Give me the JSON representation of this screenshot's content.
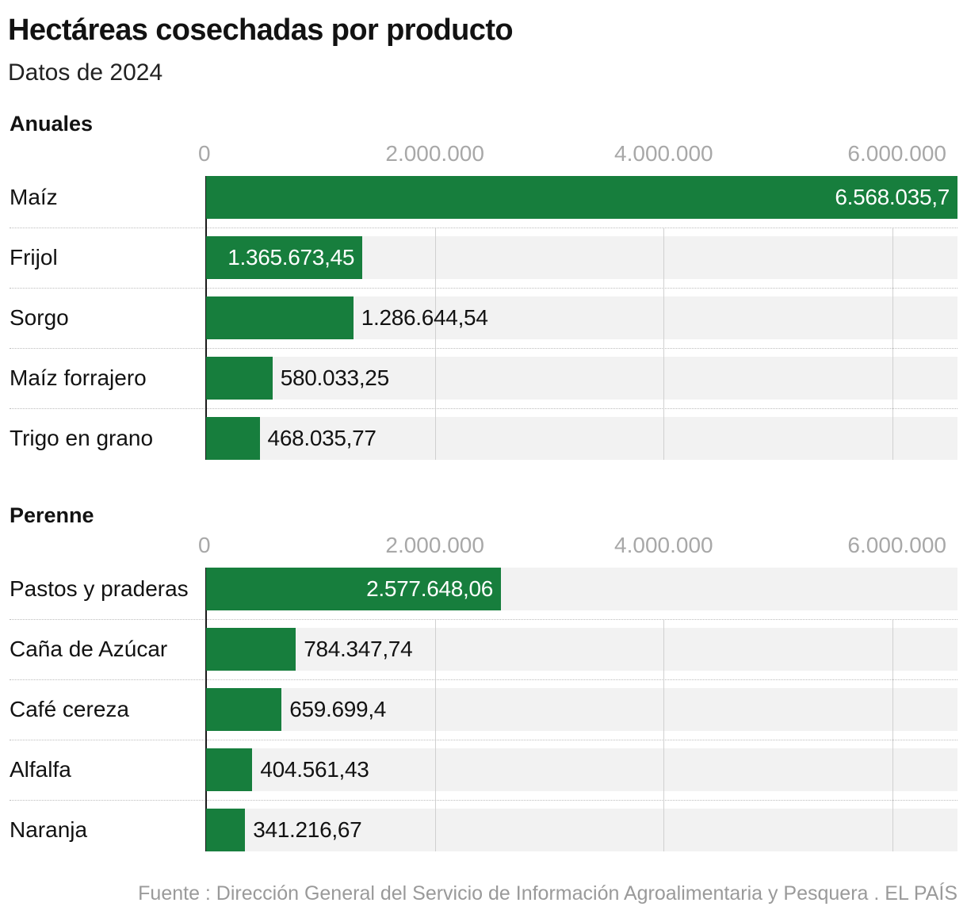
{
  "title": "Hectáreas cosechadas por producto",
  "subtitle": "Datos de 2024",
  "source": "Fuente : Dirección General del Servicio de Información Agroalimentaria y Pesquera . EL PAÍS",
  "colors": {
    "bar": "#177e3d",
    "row_background": "#f2f2f2",
    "gridline": "#d0d0d0",
    "tick_text": "#a8a8a8"
  },
  "chart_data": [
    {
      "type": "bar",
      "orientation": "horizontal",
      "title": "Anuales",
      "xlim": [
        0,
        6568035.7
      ],
      "ticks": [
        0,
        2000000,
        4000000,
        6000000
      ],
      "tick_labels": [
        "0",
        "2.000.000",
        "4.000.000",
        "6.000.000"
      ],
      "categories": [
        "Maíz",
        "Frijol",
        "Sorgo",
        "Maíz forrajero",
        "Trigo en grano"
      ],
      "values": [
        6568035.7,
        1365673.45,
        1286644.54,
        580033.25,
        468035.77
      ],
      "value_labels": [
        "6.568.035,7",
        "1.365.673,45",
        "1.286.644,54",
        "580.033,25",
        "468.035,77"
      ],
      "grid": true
    },
    {
      "type": "bar",
      "orientation": "horizontal",
      "title": "Perenne",
      "xlim": [
        0,
        6568035.7
      ],
      "ticks": [
        0,
        2000000,
        4000000,
        6000000
      ],
      "tick_labels": [
        "0",
        "2.000.000",
        "4.000.000",
        "6.000.000"
      ],
      "categories": [
        "Pastos y praderas",
        "Caña de Azúcar",
        "Café cereza",
        "Alfalfa",
        "Naranja"
      ],
      "values": [
        2577648.06,
        784347.74,
        659699.4,
        404561.43,
        341216.67
      ],
      "value_labels": [
        "2.577.648,06",
        "784.347,74",
        "659.699,4",
        "404.561,43",
        "341.216,67"
      ],
      "grid": true
    }
  ]
}
